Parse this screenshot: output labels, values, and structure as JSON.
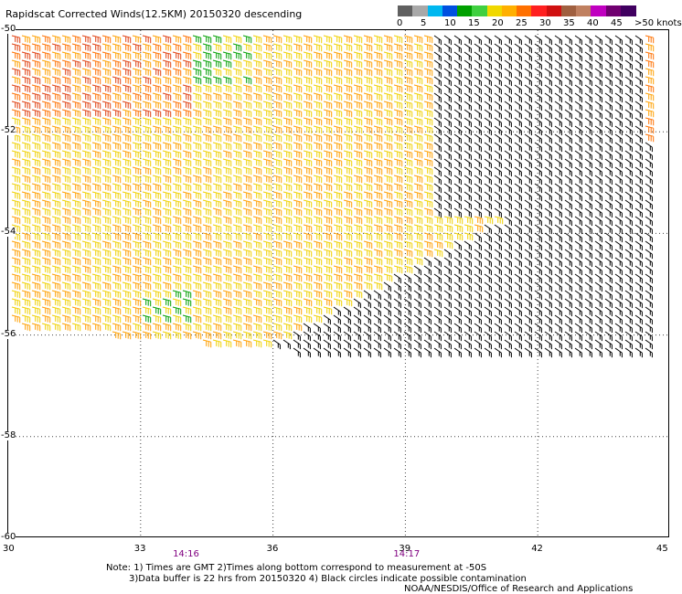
{
  "title": "Rapidscat Corrected Winds(12.5KM) 20150320 descending",
  "legend": {
    "labels": [
      "0",
      "5",
      "10",
      "15",
      "20",
      "25",
      "30",
      "35",
      "40",
      "45",
      ">50 knots"
    ],
    "colors": [
      "#606060",
      "#a8a8a8",
      "#00b8f0",
      "#0050e0",
      "#00a000",
      "#40d040",
      "#f0d800",
      "#ffb000",
      "#ff7000",
      "#ff2020",
      "#d01010",
      "#a06040",
      "#c08060",
      "#c000c0",
      "#700070",
      "#400060"
    ]
  },
  "axes": {
    "lat_labels": [
      "-50",
      "-52",
      "-54",
      "-56",
      "-58",
      "-60"
    ],
    "lon_labels": [
      "30",
      "33",
      "36",
      "39",
      "42",
      "45"
    ],
    "lat_range": [
      -60,
      -50
    ],
    "lon_range": [
      30,
      45
    ],
    "grid": "dotted"
  },
  "times": [
    {
      "label": "14:16",
      "lon": 34
    },
    {
      "label": "14:17",
      "lon": 39
    }
  ],
  "notes": {
    "line1": "Note: 1) Times are GMT 2)Times along bottom correspond to measurement at -50S",
    "line2": "3)Data buffer is 22 hrs from 20150320 4) Black circles indicate possible contamination",
    "credit": "NOAA/NESDIS/Office of Research and Applications"
  }
}
